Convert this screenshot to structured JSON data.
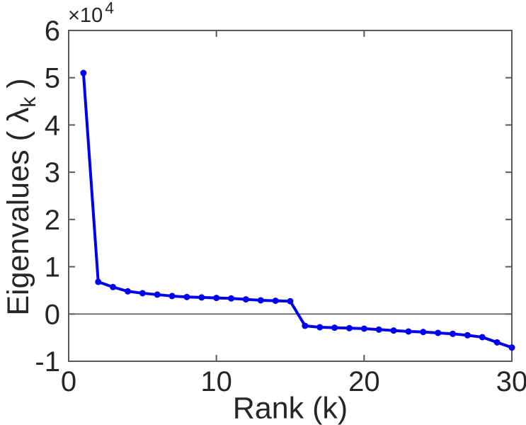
{
  "figure": {
    "multiplier": {
      "base": "×10",
      "exponent": "4"
    },
    "xlabel": "Rank (k)",
    "ylabel_parts": {
      "prefix": "Eigenvalues ( ",
      "symbol": "λ",
      "subscript": "k",
      "suffix": " )"
    }
  },
  "chart_data": {
    "type": "line",
    "title": "",
    "xlabel": "Rank (k)",
    "ylabel": "Eigenvalues ( λ_k )",
    "y_scale_label": "×10^4",
    "y_unit_multiplier": 10000,
    "xlim": [
      0,
      30
    ],
    "ylim": [
      -1,
      6
    ],
    "x_ticks": [
      0,
      10,
      20,
      30
    ],
    "y_ticks": [
      -1,
      0,
      1,
      2,
      3,
      4,
      5,
      6
    ],
    "grid": false,
    "zero_line": true,
    "legend": null,
    "series": [
      {
        "name": "eigenvalues",
        "color": "#0000ee",
        "marker": "circle",
        "x": [
          1,
          2,
          3,
          4,
          5,
          6,
          7,
          8,
          9,
          10,
          11,
          12,
          13,
          14,
          15,
          16,
          17,
          18,
          19,
          20,
          21,
          22,
          23,
          24,
          25,
          26,
          27,
          28,
          29,
          30
        ],
        "y": [
          5.1,
          0.68,
          0.57,
          0.48,
          0.44,
          0.41,
          0.38,
          0.36,
          0.35,
          0.34,
          0.33,
          0.31,
          0.29,
          0.28,
          0.27,
          -0.25,
          -0.28,
          -0.29,
          -0.3,
          -0.31,
          -0.33,
          -0.35,
          -0.37,
          -0.38,
          -0.4,
          -0.42,
          -0.45,
          -0.49,
          -0.6,
          -0.71
        ]
      }
    ]
  },
  "colors": {
    "line": "#0000ee",
    "axis": "#5a5a5a",
    "text": "#262626",
    "background": "#ffffff"
  }
}
